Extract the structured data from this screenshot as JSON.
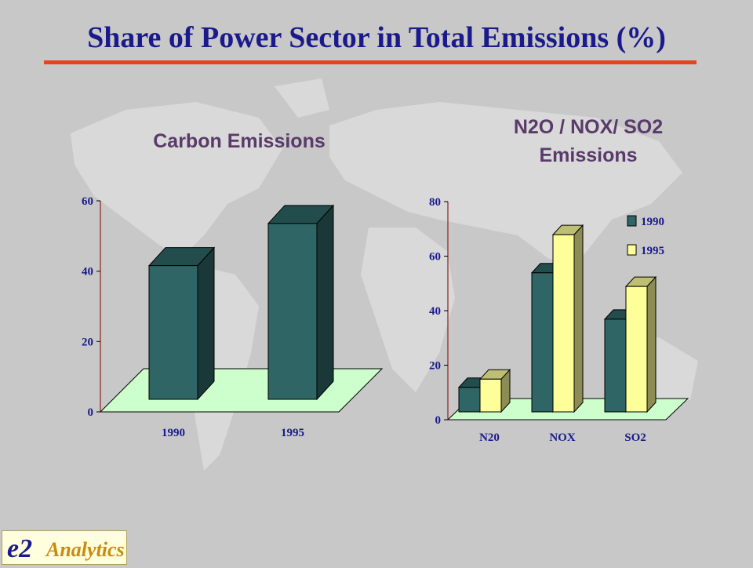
{
  "title": "Share of Power Sector in Total Emissions (%)",
  "colors": {
    "title": "#1a1a8c",
    "rule": "#e8431c",
    "chart_title": "#5a3a6a",
    "series_1990": "#2f6565",
    "series_1995": "#ffff99",
    "floor": "#ccffcc"
  },
  "chart_data": [
    {
      "type": "bar",
      "title": "Carbon Emissions",
      "categories": [
        "1990",
        "1995"
      ],
      "values": [
        38,
        50
      ],
      "ylim": [
        0,
        60
      ],
      "yticks": [
        "0",
        "20",
        "40",
        "60"
      ],
      "style": "3d"
    },
    {
      "type": "bar",
      "title": "N2O / NOX/ SO2 Emissions",
      "categories": [
        "N20",
        "NOX",
        "SO2"
      ],
      "series": [
        {
          "name": "1990",
          "values": [
            9,
            51,
            34
          ]
        },
        {
          "name": "1995",
          "values": [
            12,
            65,
            46
          ]
        }
      ],
      "ylim": [
        0,
        80
      ],
      "yticks": [
        "0",
        "20",
        "40",
        "60",
        "80"
      ],
      "legend": "top-right",
      "style": "3d"
    }
  ],
  "logo": {
    "mark": "e2",
    "text": "Analytics"
  }
}
